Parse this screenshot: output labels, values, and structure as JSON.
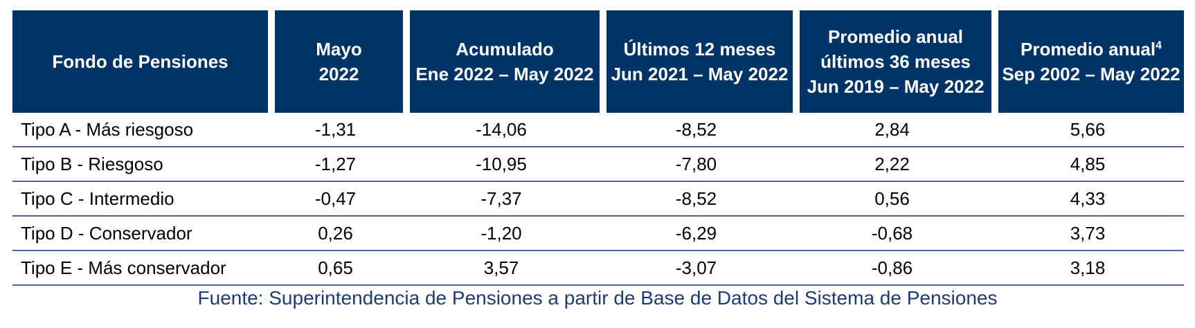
{
  "table": {
    "headers": [
      {
        "line1": "Fondo de Pensiones",
        "line2": "",
        "line3": "",
        "sup": ""
      },
      {
        "line1": "Mayo",
        "line2": "2022",
        "line3": "",
        "sup": ""
      },
      {
        "line1": "Acumulado",
        "line2": "Ene 2022 – May 2022",
        "line3": "",
        "sup": ""
      },
      {
        "line1": "Últimos 12 meses",
        "line2": "Jun 2021 – May 2022",
        "line3": "",
        "sup": ""
      },
      {
        "line1": "Promedio anual",
        "line2": "últimos 36 meses",
        "line3": "Jun 2019 – May 2022",
        "sup": ""
      },
      {
        "line1": "Promedio anual",
        "line2": "Sep 2002 – May 2022",
        "line3": "",
        "sup": "4"
      }
    ],
    "rows": [
      {
        "fondo": "Tipo A - Más riesgoso",
        "mayo": "-1,31",
        "acumulado": "-14,06",
        "ultimos12": "-8,52",
        "prom36": "2,84",
        "promanual": "5,66"
      },
      {
        "fondo": "Tipo B - Riesgoso",
        "mayo": "-1,27",
        "acumulado": "-10,95",
        "ultimos12": "-7,80",
        "prom36": "2,22",
        "promanual": "4,85"
      },
      {
        "fondo": "Tipo C - Intermedio",
        "mayo": "-0,47",
        "acumulado": "-7,37",
        "ultimos12": "-8,52",
        "prom36": "0,56",
        "promanual": "4,33"
      },
      {
        "fondo": "Tipo D - Conservador",
        "mayo": "0,26",
        "acumulado": "-1,20",
        "ultimos12": "-6,29",
        "prom36": "-0,68",
        "promanual": "3,73"
      },
      {
        "fondo": "Tipo E - Más conservador",
        "mayo": "0,65",
        "acumulado": "3,57",
        "ultimos12": "-3,07",
        "prom36": "-0,86",
        "promanual": "3,18"
      }
    ]
  },
  "source": "Fuente: Superintendencia de Pensiones a partir de Base de Datos del Sistema de Pensiones",
  "colors": {
    "header_bg": "#003366",
    "header_text": "#ffffff",
    "row_divider": "#4a6690",
    "source_text": "#1f3b73"
  }
}
